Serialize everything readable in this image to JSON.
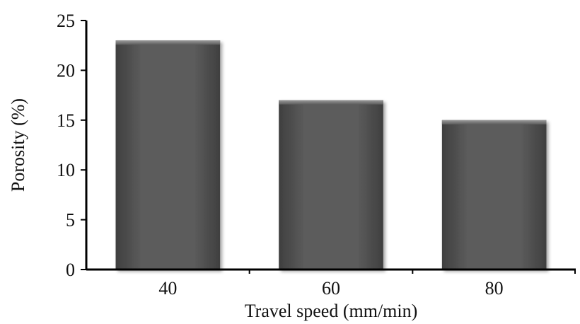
{
  "chart_data": {
    "type": "bar",
    "title": "",
    "xlabel": "Travel  speed (mm/min)",
    "ylabel": "Porosity (%)",
    "categories": [
      "40",
      "60",
      "80"
    ],
    "values": [
      23,
      17,
      15
    ],
    "ylim": [
      0,
      25
    ],
    "yticks": [
      0,
      5,
      10,
      15,
      20,
      25
    ],
    "grid": false,
    "legend": "none",
    "bar_color": "#5a5a5a"
  }
}
